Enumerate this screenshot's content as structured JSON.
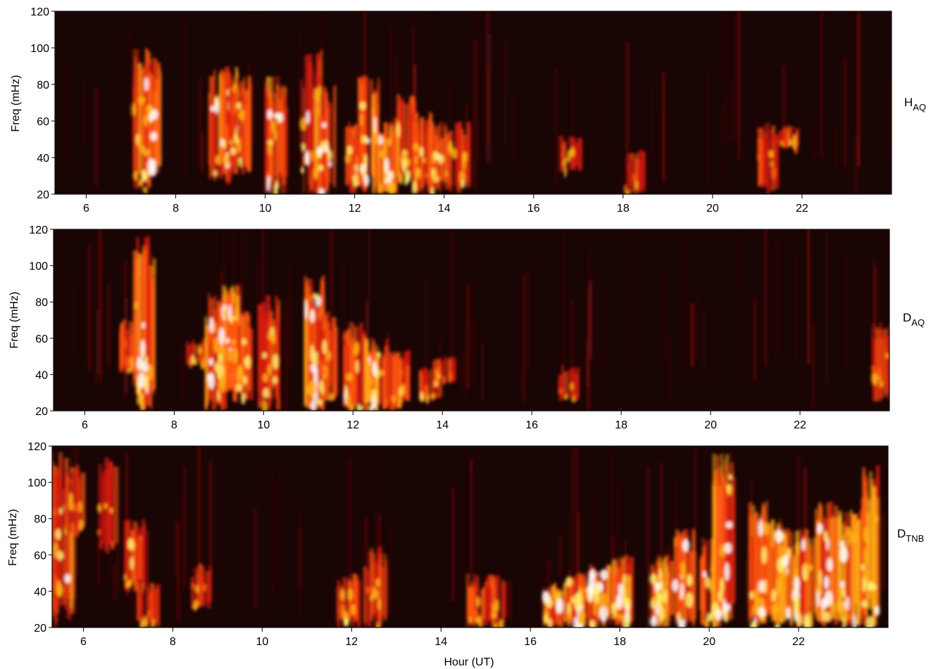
{
  "chart_data": [
    {
      "type": "heatmap",
      "station_label": "H",
      "station_sub": "AQ",
      "ylabel": "Freq (mHz)",
      "xlabel": "",
      "xlim": [
        5.3,
        24.0
      ],
      "ylim": [
        20,
        120
      ],
      "xticks": [
        6,
        8,
        10,
        12,
        14,
        16,
        18,
        20,
        22
      ],
      "yticks": [
        20,
        40,
        60,
        80,
        100,
        120
      ],
      "colormap": [
        "#1a0505",
        "#3c0a0a",
        "#8a0d0d",
        "#d41a10",
        "#ff5a12",
        "#ffb018",
        "#fff070",
        "#ffffff"
      ],
      "activity": [
        {
          "hour": 7.2,
          "fmin": 20,
          "fmax": 102,
          "level": 0.6
        },
        {
          "hour": 7.4,
          "fmin": 30,
          "fmax": 95,
          "level": 0.9
        },
        {
          "hour": 8.95,
          "fmin": 25,
          "fmax": 88,
          "level": 0.8
        },
        {
          "hour": 9.2,
          "fmin": 35,
          "fmax": 90,
          "level": 0.95
        },
        {
          "hour": 9.4,
          "fmin": 30,
          "fmax": 85,
          "level": 0.7
        },
        {
          "hour": 10.2,
          "fmin": 20,
          "fmax": 85,
          "level": 0.8
        },
        {
          "hour": 11.0,
          "fmin": 20,
          "fmax": 100,
          "level": 0.7
        },
        {
          "hour": 11.3,
          "fmin": 20,
          "fmax": 80,
          "level": 0.75
        },
        {
          "hour": 12.0,
          "fmin": 20,
          "fmax": 60,
          "level": 0.6
        },
        {
          "hour": 12.3,
          "fmin": 20,
          "fmax": 85,
          "level": 0.8
        },
        {
          "hour": 12.7,
          "fmin": 20,
          "fmax": 60,
          "level": 0.9
        },
        {
          "hour": 13.1,
          "fmin": 25,
          "fmax": 75,
          "level": 0.7
        },
        {
          "hour": 13.5,
          "fmin": 20,
          "fmax": 65,
          "level": 0.6
        },
        {
          "hour": 13.9,
          "fmin": 20,
          "fmax": 60,
          "level": 0.75
        },
        {
          "hour": 14.3,
          "fmin": 20,
          "fmax": 60,
          "level": 0.6
        },
        {
          "hour": 16.8,
          "fmin": 32,
          "fmax": 52,
          "level": 0.45
        },
        {
          "hour": 18.2,
          "fmin": 20,
          "fmax": 45,
          "level": 0.3
        },
        {
          "hour": 21.2,
          "fmin": 20,
          "fmax": 60,
          "level": 0.45
        },
        {
          "hour": 21.7,
          "fmin": 45,
          "fmax": 58,
          "level": 0.4
        }
      ]
    },
    {
      "type": "heatmap",
      "station_label": "D",
      "station_sub": "AQ",
      "ylabel": "Freq (mHz)",
      "xlabel": "",
      "xlim": [
        5.3,
        24.0
      ],
      "ylim": [
        20,
        120
      ],
      "xticks": [
        6,
        8,
        10,
        12,
        14,
        16,
        18,
        20,
        22
      ],
      "yticks": [
        20,
        40,
        60,
        80,
        100,
        120
      ],
      "colormap": [
        "#1a0505",
        "#3c0a0a",
        "#8a0d0d",
        "#d41a10",
        "#ff5a12",
        "#ffb018",
        "#fff070",
        "#ffffff"
      ],
      "activity": [
        {
          "hour": 7.0,
          "fmin": 40,
          "fmax": 70,
          "level": 0.5
        },
        {
          "hour": 7.3,
          "fmin": 20,
          "fmax": 118,
          "level": 0.95
        },
        {
          "hour": 8.5,
          "fmin": 45,
          "fmax": 60,
          "level": 0.45
        },
        {
          "hour": 8.9,
          "fmin": 20,
          "fmax": 85,
          "level": 0.8
        },
        {
          "hour": 9.2,
          "fmin": 30,
          "fmax": 90,
          "level": 1.0
        },
        {
          "hour": 9.5,
          "fmin": 25,
          "fmax": 75,
          "level": 0.75
        },
        {
          "hour": 10.1,
          "fmin": 20,
          "fmax": 85,
          "level": 0.7
        },
        {
          "hour": 11.1,
          "fmin": 20,
          "fmax": 95,
          "level": 1.0
        },
        {
          "hour": 11.4,
          "fmin": 25,
          "fmax": 75,
          "level": 0.65
        },
        {
          "hour": 12.0,
          "fmin": 20,
          "fmax": 70,
          "level": 0.75
        },
        {
          "hour": 12.5,
          "fmin": 20,
          "fmax": 60,
          "level": 0.85
        },
        {
          "hour": 13.0,
          "fmin": 20,
          "fmax": 55,
          "level": 0.6
        },
        {
          "hour": 13.7,
          "fmin": 25,
          "fmax": 45,
          "level": 0.5
        },
        {
          "hour": 14.0,
          "fmin": 35,
          "fmax": 50,
          "level": 0.4
        },
        {
          "hour": 16.8,
          "fmin": 25,
          "fmax": 45,
          "level": 0.35
        },
        {
          "hour": 23.8,
          "fmin": 25,
          "fmax": 70,
          "level": 0.5
        }
      ]
    },
    {
      "type": "heatmap",
      "station_label": "D",
      "station_sub": "TNB",
      "ylabel": "Freq (mHz)",
      "xlabel": "Hour (UT)",
      "xlim": [
        5.3,
        24.0
      ],
      "ylim": [
        20,
        120
      ],
      "xticks": [
        6,
        8,
        10,
        12,
        14,
        16,
        18,
        20,
        22
      ],
      "yticks": [
        20,
        40,
        60,
        80,
        100,
        120
      ],
      "colormap": [
        "#1a0505",
        "#3c0a0a",
        "#8a0d0d",
        "#d41a10",
        "#ff5a12",
        "#ffb018",
        "#fff070",
        "#ffffff"
      ],
      "activity": [
        {
          "hour": 5.5,
          "fmin": 20,
          "fmax": 118,
          "level": 0.75
        },
        {
          "hour": 5.8,
          "fmin": 70,
          "fmax": 110,
          "level": 0.45
        },
        {
          "hour": 6.5,
          "fmin": 60,
          "fmax": 115,
          "level": 0.35
        },
        {
          "hour": 7.1,
          "fmin": 40,
          "fmax": 80,
          "level": 0.6
        },
        {
          "hour": 7.4,
          "fmin": 20,
          "fmax": 45,
          "level": 0.4
        },
        {
          "hour": 8.6,
          "fmin": 30,
          "fmax": 55,
          "level": 0.35
        },
        {
          "hour": 11.9,
          "fmin": 20,
          "fmax": 50,
          "level": 0.6
        },
        {
          "hour": 12.5,
          "fmin": 20,
          "fmax": 65,
          "level": 0.5
        },
        {
          "hour": 14.8,
          "fmin": 20,
          "fmax": 50,
          "level": 0.45
        },
        {
          "hour": 15.2,
          "fmin": 20,
          "fmax": 50,
          "level": 0.5
        },
        {
          "hour": 16.5,
          "fmin": 20,
          "fmax": 45,
          "level": 0.9
        },
        {
          "hour": 17.0,
          "fmin": 20,
          "fmax": 50,
          "level": 1.0
        },
        {
          "hour": 17.5,
          "fmin": 20,
          "fmax": 55,
          "level": 1.0
        },
        {
          "hour": 18.0,
          "fmin": 20,
          "fmax": 60,
          "level": 0.95
        },
        {
          "hour": 18.9,
          "fmin": 20,
          "fmax": 60,
          "level": 0.85
        },
        {
          "hour": 19.4,
          "fmin": 20,
          "fmax": 75,
          "level": 0.95
        },
        {
          "hour": 20.0,
          "fmin": 20,
          "fmax": 70,
          "level": 0.75
        },
        {
          "hour": 20.3,
          "fmin": 20,
          "fmax": 118,
          "level": 1.0
        },
        {
          "hour": 21.1,
          "fmin": 20,
          "fmax": 90,
          "level": 0.9
        },
        {
          "hour": 21.6,
          "fmin": 20,
          "fmax": 80,
          "level": 1.0
        },
        {
          "hour": 22.1,
          "fmin": 20,
          "fmax": 75,
          "level": 1.0
        },
        {
          "hour": 22.6,
          "fmin": 20,
          "fmax": 90,
          "level": 0.95
        },
        {
          "hour": 23.1,
          "fmin": 20,
          "fmax": 85,
          "level": 1.0
        },
        {
          "hour": 23.6,
          "fmin": 20,
          "fmax": 110,
          "level": 0.9
        }
      ]
    }
  ]
}
